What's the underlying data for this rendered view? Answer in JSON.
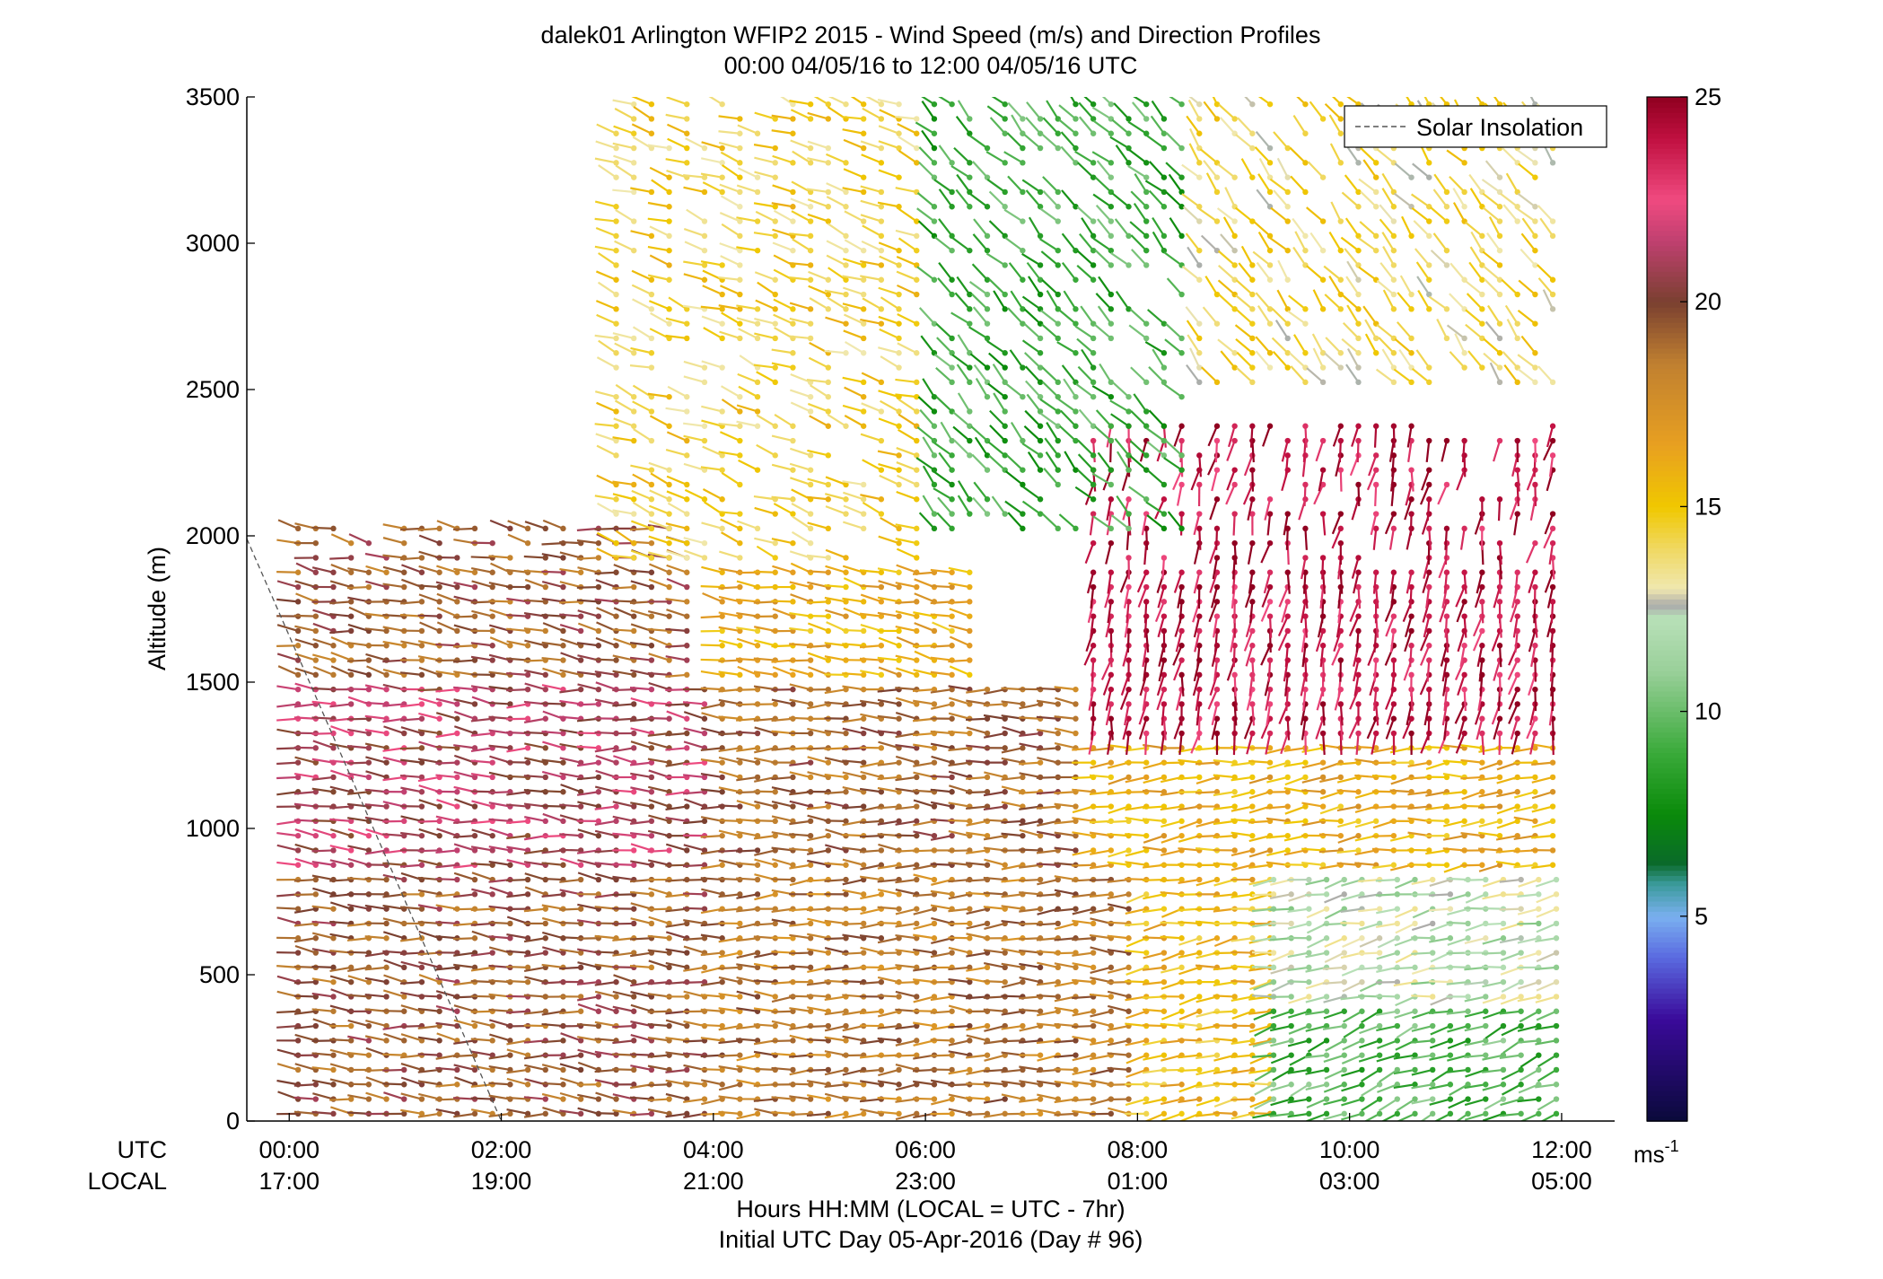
{
  "chart_data": {
    "type": "wind-barb-profile",
    "title": "dalek01 Arlington WFIP2 2015 - Wind Speed (m/s) and Direction Profiles",
    "subtitle": "00:00 04/05/16 to 12:00 04/05/16  UTC",
    "ylabel": "Altitude (m)",
    "xlabel": "Hours HH:MM  (LOCAL = UTC - 7hr)",
    "xlabel2": "Initial UTC Day 05-Apr-2016 (Day # 96)",
    "row_label_utc": "UTC",
    "row_label_local": "LOCAL",
    "xlim_hours": [
      -0.4,
      12.5
    ],
    "ylim": [
      0,
      3500
    ],
    "yticks": [
      0,
      500,
      1000,
      1500,
      2000,
      2500,
      3000,
      3500
    ],
    "ytick_labels": [
      "0",
      "500",
      "1000",
      "1500",
      "2000",
      "2500",
      "3000",
      "3500"
    ],
    "xticks_hours": [
      0,
      2,
      4,
      6,
      8,
      10,
      12
    ],
    "xtick_labels_utc": [
      "00:00",
      "02:00",
      "04:00",
      "06:00",
      "08:00",
      "10:00",
      "12:00"
    ],
    "xtick_labels_local": [
      "17:00",
      "19:00",
      "21:00",
      "23:00",
      "01:00",
      "03:00",
      "05:00"
    ],
    "legend": {
      "entry": "Solar Insolation",
      "placement": "top-right"
    },
    "solar_insolation_line": {
      "x_hours": [
        -0.4,
        2.0
      ],
      "y_altitude": [
        1990,
        0
      ]
    },
    "colorbar": {
      "label": "ms-1",
      "range": [
        0,
        25
      ],
      "ticks": [
        5,
        10,
        15,
        20,
        25
      ],
      "tick_labels": [
        "5",
        "10",
        "15",
        "20",
        "25"
      ],
      "stops": [
        {
          "v": 0.0,
          "c": "#0a0a3a"
        },
        {
          "v": 2.5,
          "c": "#3a0a9a"
        },
        {
          "v": 4.0,
          "c": "#5a6ae0"
        },
        {
          "v": 5.0,
          "c": "#7ab0f0"
        },
        {
          "v": 5.8,
          "c": "#3a9a9a"
        },
        {
          "v": 6.3,
          "c": "#0a6a2a"
        },
        {
          "v": 7.5,
          "c": "#0a8a0a"
        },
        {
          "v": 9.0,
          "c": "#3aaa3a"
        },
        {
          "v": 11.0,
          "c": "#9ad09a"
        },
        {
          "v": 12.3,
          "c": "#b8e0b8"
        },
        {
          "v": 12.6,
          "c": "#aaaaaa"
        },
        {
          "v": 13.0,
          "c": "#f0e8b0"
        },
        {
          "v": 14.0,
          "c": "#f0d860"
        },
        {
          "v": 15.0,
          "c": "#f0c800"
        },
        {
          "v": 16.5,
          "c": "#e8a020"
        },
        {
          "v": 18.5,
          "c": "#c08030"
        },
        {
          "v": 20.0,
          "c": "#7a4030"
        },
        {
          "v": 21.5,
          "c": "#c04070"
        },
        {
          "v": 22.5,
          "c": "#f04a80"
        },
        {
          "v": 24.0,
          "c": "#c01040"
        },
        {
          "v": 25.0,
          "c": "#900020"
        }
      ]
    },
    "regions_note": "Barbs plotted every ~10 min and ~50 m; speeds in m/s, directions in degrees (meteorological, from).",
    "regions": [
      {
        "t0": 0.0,
        "t1": 4.0,
        "z0": 0,
        "z1": 850,
        "speed": 19.5,
        "dir": 275
      },
      {
        "t0": 4.0,
        "t1": 8.0,
        "z0": 0,
        "z1": 850,
        "speed": 18.5,
        "dir": 270
      },
      {
        "t0": 8.0,
        "t1": 9.2,
        "z0": 0,
        "z1": 850,
        "speed": 15.5,
        "dir": 262
      },
      {
        "t0": 9.2,
        "t1": 12.0,
        "z0": 0,
        "z1": 400,
        "speed": 9.5,
        "dir": 250
      },
      {
        "t0": 9.2,
        "t1": 12.0,
        "z0": 400,
        "z1": 850,
        "speed": 12.0,
        "dir": 258
      },
      {
        "t0": 0.0,
        "t1": 4.0,
        "z0": 850,
        "z1": 1500,
        "speed": 21.0,
        "dir": 275
      },
      {
        "t0": 4.0,
        "t1": 7.5,
        "z0": 850,
        "z1": 1500,
        "speed": 19.0,
        "dir": 272
      },
      {
        "t0": 7.5,
        "t1": 12.0,
        "z0": 850,
        "z1": 1300,
        "speed": 16.0,
        "dir": 265
      },
      {
        "t0": 0.0,
        "t1": 3.8,
        "z0": 1500,
        "z1": 2050,
        "speed": 19.5,
        "dir": 280
      },
      {
        "t0": 4.0,
        "t1": 6.5,
        "z0": 1500,
        "z1": 1900,
        "speed": 16.0,
        "dir": 280
      },
      {
        "t0": 7.5,
        "t1": 12.0,
        "z0": 1300,
        "z1": 2400,
        "speed": 24.0,
        "dir": 190
      },
      {
        "t0": 3.0,
        "t1": 6.0,
        "z0": 1900,
        "z1": 3500,
        "speed": 14.5,
        "dir": 290
      },
      {
        "t0": 6.0,
        "t1": 8.5,
        "z0": 2000,
        "z1": 3500,
        "speed": 9.0,
        "dir": 315
      },
      {
        "t0": 8.5,
        "t1": 12.0,
        "z0": 2500,
        "z1": 3500,
        "speed": 14.0,
        "dir": 320
      }
    ]
  }
}
